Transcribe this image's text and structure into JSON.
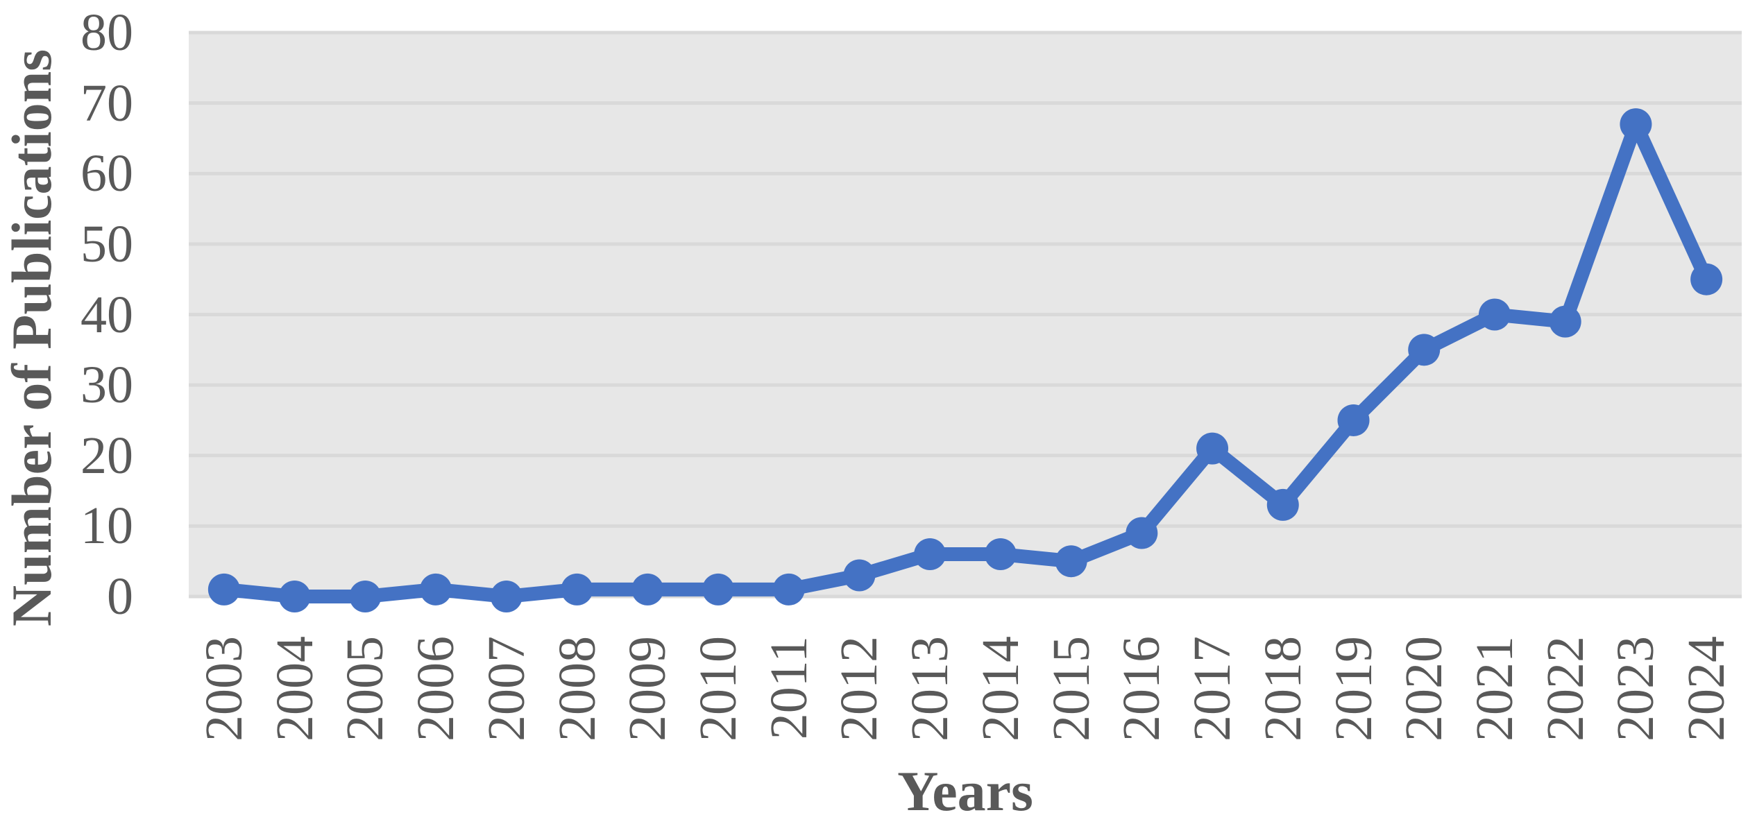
{
  "chart_data": {
    "type": "line",
    "title": "",
    "categories": [
      "2003",
      "2004",
      "2005",
      "2006",
      "2007",
      "2008",
      "2009",
      "2010",
      "2011",
      "2012",
      "2013",
      "2014",
      "2015",
      "2016",
      "2017",
      "2018",
      "2019",
      "2020",
      "2021",
      "2022",
      "2023",
      "2024"
    ],
    "series": [
      {
        "name": "Number of Publications",
        "values": [
          1,
          0,
          0,
          1,
          0,
          1,
          1,
          1,
          1,
          3,
          6,
          6,
          5,
          9,
          21,
          13,
          25,
          35,
          40,
          39,
          67,
          45
        ]
      }
    ],
    "xlabel": "Years",
    "ylabel": "Number of Publications",
    "ylim": [
      0,
      80
    ],
    "yticks": [
      0,
      10,
      20,
      30,
      40,
      50,
      60,
      70,
      80
    ],
    "grid": "horizontal",
    "legend": "none",
    "colors": {
      "line": "#4472c4",
      "marker": "#4472c4",
      "plot_background": "#e7e7e7",
      "gridline": "#d9d9d9",
      "text": "#595959"
    }
  }
}
